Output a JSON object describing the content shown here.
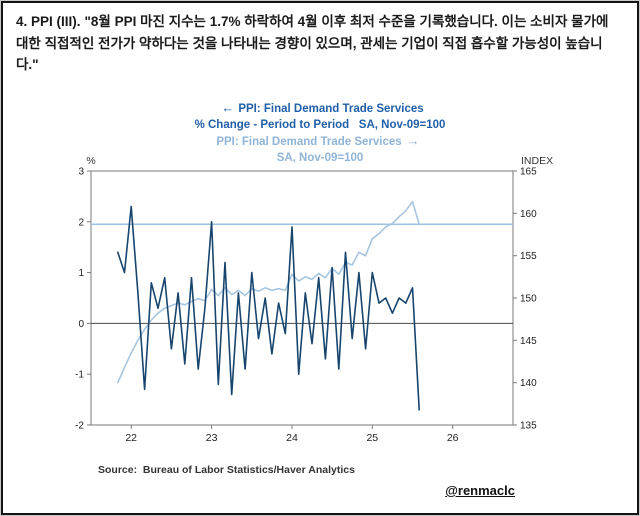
{
  "page": {
    "commentary_lead": "4. PPI (III).",
    "commentary_text": "\"8월 PPI 마진 지수는 1.7% 하락하여 4월 이후 최저 수준을 기록했습니다. 이는 소비자 물가에 대한 직접적인 전가가 약하다는 것을 나타내는 경향이 있으며, 관세는 기업이 직접 흡수할 가능성이 높습니다.\""
  },
  "chart_titles": {
    "left_arrow": "←",
    "right_arrow": "→",
    "left_series_line1": "PPI: Final Demand Trade Services",
    "left_series_line2": "% Change - Period to Period   SA, Nov-09=100",
    "right_series_line1": "PPI: Final Demand Trade Services",
    "right_series_line2": "SA, Nov-09=100"
  },
  "colors": {
    "dark_series": "#17456e",
    "light_series": "#a6c5e2",
    "title_dark": "#1f5fa8",
    "title_light": "#8fb4d6",
    "reference_line": "#9cc3e4",
    "zero_line": "#4a4a4a",
    "frame": "#7a7a7a"
  },
  "footer": {
    "source": "Source:  Bureau of Labor Statistics/Haver Analytics",
    "handle": "@renmaclc"
  },
  "chart_data": {
    "type": "line",
    "y_left_label": "%",
    "y_right_label": "INDEX",
    "y_left_range": [
      -2,
      3
    ],
    "y_right_range": [
      135,
      165
    ],
    "y_left_ticks": [
      3,
      2,
      1,
      0,
      -1,
      -2
    ],
    "y_right_ticks": [
      165,
      160,
      155,
      150,
      145,
      140,
      135
    ],
    "x_ticks": [
      "22",
      "23",
      "24",
      "25",
      "26"
    ],
    "x_domain_months": [
      "2021-07",
      "2026-10"
    ],
    "zero_line_left_axis": 0,
    "reference_line_right_axis": 158.7,
    "grid": false,
    "legend_position": "top-titles",
    "months": [
      "2021-11",
      "2021-12",
      "2022-01",
      "2022-02",
      "2022-03",
      "2022-04",
      "2022-05",
      "2022-06",
      "2022-07",
      "2022-08",
      "2022-09",
      "2022-10",
      "2022-11",
      "2022-12",
      "2023-01",
      "2023-02",
      "2023-03",
      "2023-04",
      "2023-05",
      "2023-06",
      "2023-07",
      "2023-08",
      "2023-09",
      "2023-10",
      "2023-11",
      "2023-12",
      "2024-01",
      "2024-02",
      "2024-03",
      "2024-04",
      "2024-05",
      "2024-06",
      "2024-07",
      "2024-08",
      "2024-09",
      "2024-10",
      "2024-11",
      "2024-12",
      "2025-01",
      "2025-02",
      "2025-03",
      "2025-04",
      "2025-05",
      "2025-06",
      "2025-07",
      "2025-08"
    ],
    "series": [
      {
        "name": "PPI: Final Demand Trade Services, % Change - Period to Period (left axis)",
        "axis": "left",
        "color": "#17456e",
        "values": [
          1.4,
          1.0,
          2.3,
          0.6,
          -1.3,
          0.8,
          0.3,
          0.9,
          -0.5,
          0.6,
          -0.8,
          0.9,
          -0.9,
          0.3,
          2.0,
          -1.2,
          1.2,
          -1.4,
          0.6,
          -0.9,
          1.0,
          -0.3,
          0.5,
          -0.6,
          0.4,
          -0.2,
          1.9,
          -1.0,
          0.6,
          -0.4,
          0.9,
          -0.7,
          1.1,
          -0.9,
          1.4,
          -0.3,
          1.0,
          -0.5,
          1.0,
          0.4,
          0.5,
          0.2,
          0.5,
          0.4,
          0.7,
          -1.7
        ]
      },
      {
        "name": "PPI: Final Demand Trade Services, SA, Nov-09=100 (right axis)",
        "axis": "right",
        "color": "#a6c5e2",
        "values": [
          140.0,
          141.8,
          143.5,
          145.0,
          146.3,
          147.4,
          148.2,
          148.8,
          149.1,
          149.4,
          149.2,
          149.6,
          149.9,
          149.7,
          151.0,
          150.3,
          151.2,
          150.4,
          150.9,
          150.3,
          151.1,
          150.8,
          151.2,
          150.9,
          151.1,
          150.9,
          152.8,
          152.0,
          152.5,
          152.2,
          152.9,
          152.4,
          153.5,
          152.8,
          154.2,
          153.9,
          155.4,
          155.0,
          157.0,
          157.6,
          158.4,
          158.8,
          159.6,
          160.3,
          161.4,
          158.7
        ]
      }
    ]
  }
}
